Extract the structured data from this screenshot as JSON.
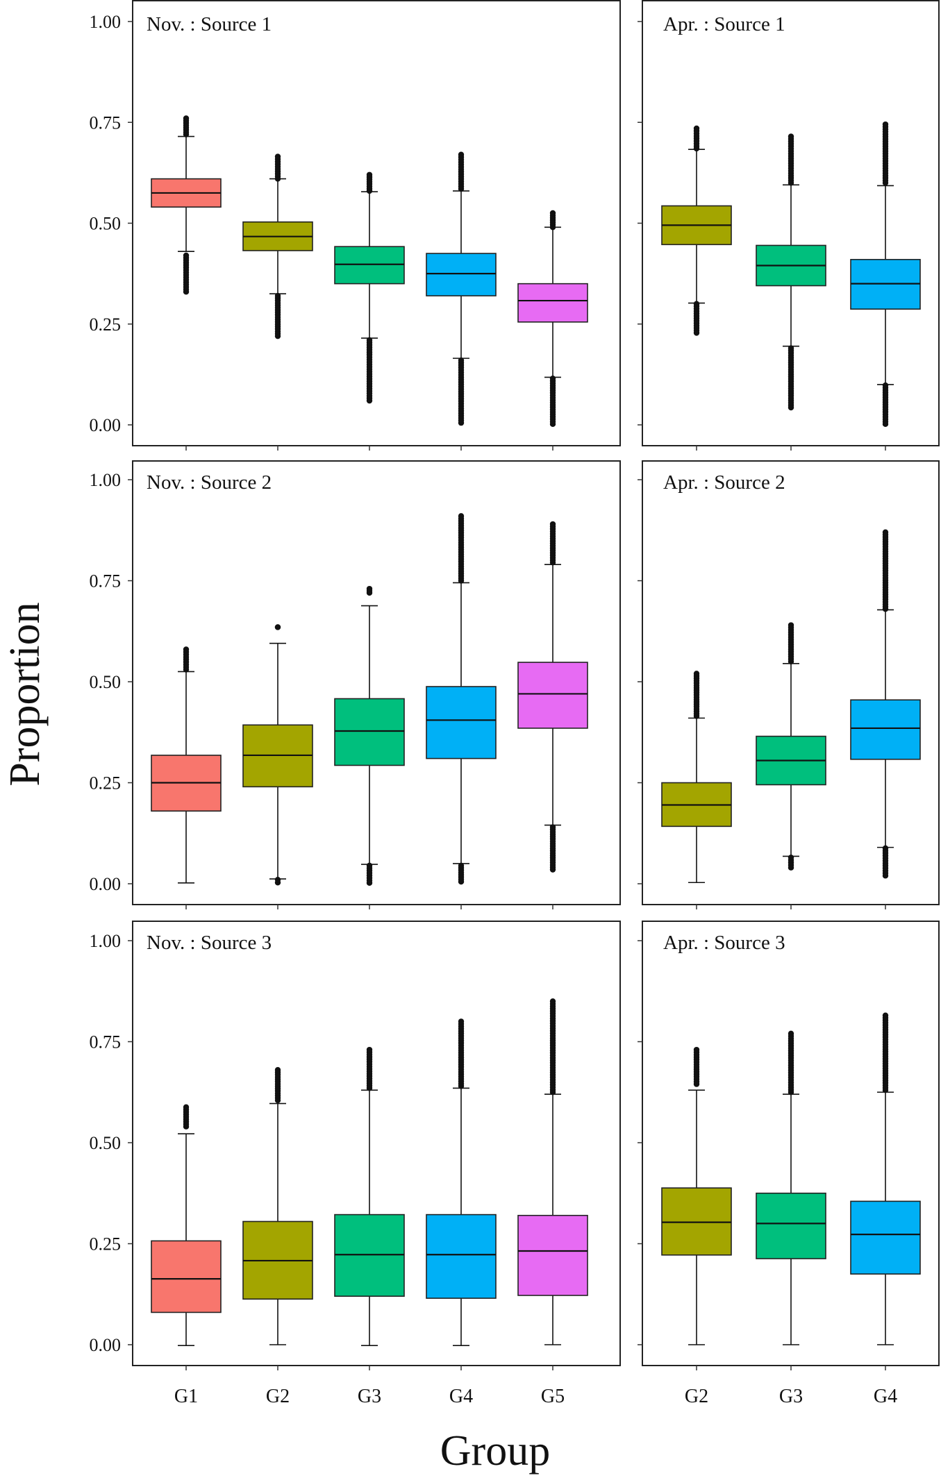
{
  "chart_data": {
    "type": "boxplot",
    "ylabel": "Proportion",
    "xlabel": "Group",
    "ylim": [
      0,
      1
    ],
    "yticks": [
      "0.00",
      "0.25",
      "0.50",
      "0.75",
      "1.00"
    ],
    "yticks_values": [
      0,
      0.25,
      0.5,
      0.75,
      1.0
    ],
    "group_colors": {
      "G1": "#f8766d",
      "G2": "#a3a500",
      "G3": "#00bf7d",
      "G4": "#00b0f6",
      "G5": "#e76bf3"
    },
    "panels": [
      {
        "title": "Nov. : Source 1",
        "month": "Nov.",
        "source": "Source 1",
        "categories": [
          "G1",
          "G2",
          "G3",
          "G4",
          "G5"
        ],
        "boxes": [
          {
            "group": "G1",
            "min": 0.43,
            "q1": 0.54,
            "median": 0.575,
            "q3": 0.61,
            "max": 0.715,
            "outliers_low": [
              0.33,
              0.42
            ],
            "outliers_high": [
              0.72,
              0.76
            ]
          },
          {
            "group": "G2",
            "min": 0.325,
            "q1": 0.432,
            "median": 0.467,
            "q3": 0.503,
            "max": 0.61,
            "outliers_low": [
              0.22,
              0.32
            ],
            "outliers_high": [
              0.61,
              0.665
            ]
          },
          {
            "group": "G3",
            "min": 0.215,
            "q1": 0.35,
            "median": 0.398,
            "q3": 0.442,
            "max": 0.578,
            "outliers_low": [
              0.06,
              0.21
            ],
            "outliers_high": [
              0.58,
              0.62
            ]
          },
          {
            "group": "G4",
            "min": 0.165,
            "q1": 0.32,
            "median": 0.375,
            "q3": 0.425,
            "max": 0.58,
            "outliers_low": [
              0.005,
              0.16
            ],
            "outliers_high": [
              0.585,
              0.67
            ]
          },
          {
            "group": "G5",
            "min": 0.118,
            "q1": 0.255,
            "median": 0.308,
            "q3": 0.35,
            "max": 0.49,
            "outliers_low": [
              0.002,
              0.115
            ],
            "outliers_high": [
              0.49,
              0.525
            ]
          }
        ]
      },
      {
        "title": "Apr. : Source 1",
        "month": "Apr.",
        "source": "Source 1",
        "categories": [
          "G2",
          "G3",
          "G4"
        ],
        "boxes": [
          {
            "group": "G2",
            "min": 0.302,
            "q1": 0.447,
            "median": 0.495,
            "q3": 0.543,
            "max": 0.683,
            "outliers_low": [
              0.228,
              0.3
            ],
            "outliers_high": [
              0.685,
              0.735
            ]
          },
          {
            "group": "G3",
            "min": 0.195,
            "q1": 0.345,
            "median": 0.395,
            "q3": 0.445,
            "max": 0.595,
            "outliers_low": [
              0.043,
              0.19
            ],
            "outliers_high": [
              0.6,
              0.715
            ]
          },
          {
            "group": "G4",
            "min": 0.1,
            "q1": 0.287,
            "median": 0.35,
            "q3": 0.41,
            "max": 0.593,
            "outliers_low": [
              0.002,
              0.098
            ],
            "outliers_high": [
              0.6,
              0.745
            ]
          }
        ]
      },
      {
        "title": "Nov. : Source 2",
        "month": "Nov.",
        "source": "Source 2",
        "categories": [
          "G1",
          "G2",
          "G3",
          "G4",
          "G5"
        ],
        "boxes": [
          {
            "group": "G1",
            "min": 0.002,
            "q1": 0.18,
            "median": 0.25,
            "q3": 0.318,
            "max": 0.525,
            "outliers_low": [],
            "outliers_high": [
              0.53,
              0.58
            ]
          },
          {
            "group": "G2",
            "min": 0.012,
            "q1": 0.24,
            "median": 0.318,
            "q3": 0.393,
            "max": 0.595,
            "outliers_low": [
              0.003,
              0.01
            ],
            "outliers_high": [
              0.635,
              0.635
            ]
          },
          {
            "group": "G3",
            "min": 0.048,
            "q1": 0.293,
            "median": 0.378,
            "q3": 0.458,
            "max": 0.688,
            "outliers_low": [
              0.002,
              0.045
            ],
            "outliers_high": [
              0.72,
              0.73
            ]
          },
          {
            "group": "G4",
            "min": 0.05,
            "q1": 0.31,
            "median": 0.405,
            "q3": 0.488,
            "max": 0.745,
            "outliers_low": [
              0.005,
              0.045
            ],
            "outliers_high": [
              0.75,
              0.91
            ]
          },
          {
            "group": "G5",
            "min": 0.145,
            "q1": 0.385,
            "median": 0.47,
            "q3": 0.548,
            "max": 0.79,
            "outliers_low": [
              0.035,
              0.14
            ],
            "outliers_high": [
              0.795,
              0.89
            ]
          }
        ]
      },
      {
        "title": "Apr. : Source 2",
        "month": "Apr.",
        "source": "Source 2",
        "categories": [
          "G2",
          "G3",
          "G4"
        ],
        "boxes": [
          {
            "group": "G2",
            "min": 0.003,
            "q1": 0.142,
            "median": 0.195,
            "q3": 0.25,
            "max": 0.41,
            "outliers_low": [],
            "outliers_high": [
              0.415,
              0.52
            ]
          },
          {
            "group": "G3",
            "min": 0.068,
            "q1": 0.245,
            "median": 0.305,
            "q3": 0.365,
            "max": 0.545,
            "outliers_low": [
              0.04,
              0.065
            ],
            "outliers_high": [
              0.55,
              0.64
            ]
          },
          {
            "group": "G4",
            "min": 0.09,
            "q1": 0.308,
            "median": 0.385,
            "q3": 0.455,
            "max": 0.678,
            "outliers_low": [
              0.02,
              0.088
            ],
            "outliers_high": [
              0.68,
              0.87
            ]
          }
        ]
      },
      {
        "title": "Nov. : Source 3",
        "month": "Nov.",
        "source": "Source 3",
        "categories": [
          "G1",
          "G2",
          "G3",
          "G4",
          "G5"
        ],
        "boxes": [
          {
            "group": "G1",
            "min": -0.002,
            "q1": 0.08,
            "median": 0.163,
            "q3": 0.257,
            "max": 0.522,
            "outliers_low": [],
            "outliers_high": [
              0.54,
              0.588
            ]
          },
          {
            "group": "G2",
            "min": 0.0,
            "q1": 0.113,
            "median": 0.208,
            "q3": 0.305,
            "max": 0.597,
            "outliers_low": [],
            "outliers_high": [
              0.605,
              0.68
            ]
          },
          {
            "group": "G3",
            "min": -0.002,
            "q1": 0.12,
            "median": 0.223,
            "q3": 0.322,
            "max": 0.63,
            "outliers_low": [],
            "outliers_high": [
              0.635,
              0.73
            ]
          },
          {
            "group": "G4",
            "min": -0.002,
            "q1": 0.115,
            "median": 0.223,
            "q3": 0.322,
            "max": 0.635,
            "outliers_low": [],
            "outliers_high": [
              0.64,
              0.8
            ]
          },
          {
            "group": "G5",
            "min": 0.0,
            "q1": 0.122,
            "median": 0.232,
            "q3": 0.32,
            "max": 0.62,
            "outliers_low": [],
            "outliers_high": [
              0.625,
              0.85
            ]
          }
        ]
      },
      {
        "title": "Apr. : Source 3",
        "month": "Apr.",
        "source": "Source 3",
        "categories": [
          "G2",
          "G3",
          "G4"
        ],
        "boxes": [
          {
            "group": "G2",
            "min": 0.0,
            "q1": 0.222,
            "median": 0.303,
            "q3": 0.388,
            "max": 0.63,
            "outliers_low": [],
            "outliers_high": [
              0.645,
              0.73
            ]
          },
          {
            "group": "G3",
            "min": 0.0,
            "q1": 0.213,
            "median": 0.3,
            "q3": 0.375,
            "max": 0.62,
            "outliers_low": [],
            "outliers_high": [
              0.625,
              0.77
            ]
          },
          {
            "group": "G4",
            "min": 0.0,
            "q1": 0.175,
            "median": 0.273,
            "q3": 0.355,
            "max": 0.625,
            "outliers_low": [],
            "outliers_high": [
              0.63,
              0.815
            ]
          }
        ]
      }
    ]
  }
}
